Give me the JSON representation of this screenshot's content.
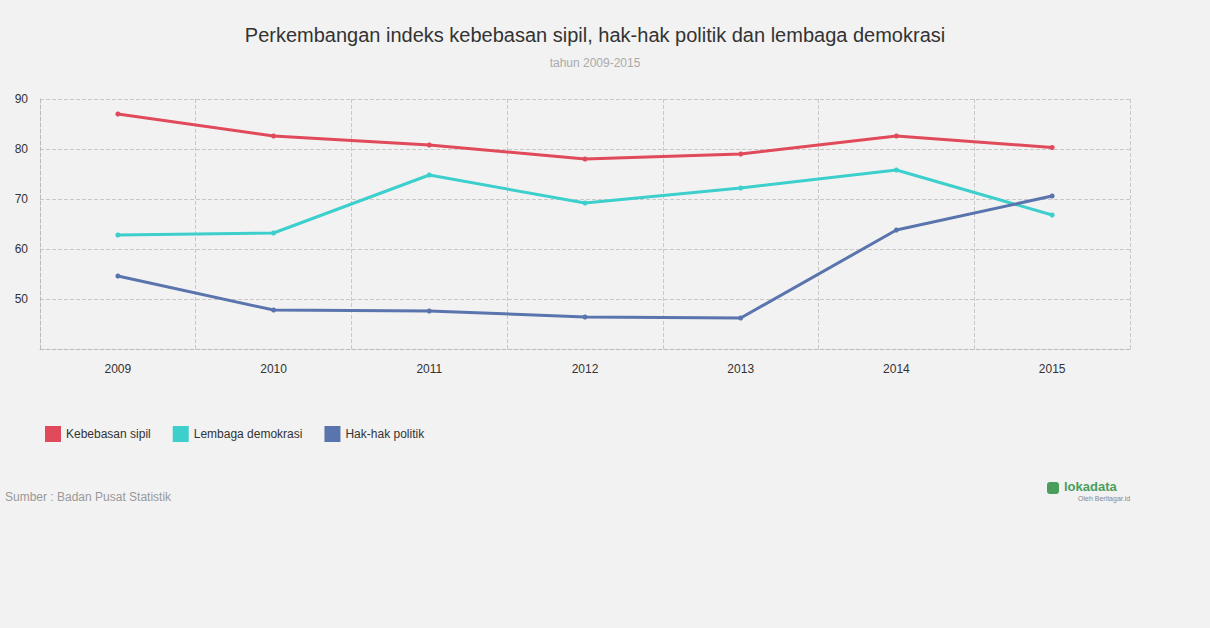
{
  "chart_data": {
    "type": "line",
    "title": "Perkembangan indeks kebebasan sipil, hak-hak politik dan lembaga demokrasi",
    "subtitle": "tahun 2009-2015",
    "source": "Sumber : Badan Pusat Statistik",
    "logo": "lokadata",
    "logo_subtext": "Oleh Beritagar.id",
    "categories": [
      "2009",
      "2010",
      "2011",
      "2012",
      "2013",
      "2014",
      "2015"
    ],
    "series": [
      {
        "name": "Kebebasan sipil",
        "color": "#e04a5a",
        "values": [
          87.0,
          82.6,
          80.8,
          78.0,
          79.0,
          82.6,
          80.3
        ]
      },
      {
        "name": "Lembaga demokrasi",
        "color": "#3ccfcc",
        "values": [
          62.8,
          63.2,
          74.8,
          69.2,
          72.2,
          75.8,
          66.8
        ]
      },
      {
        "name": "Hak-hak politik",
        "color": "#5a74ae",
        "values": [
          54.6,
          47.8,
          47.6,
          46.4,
          46.2,
          63.8,
          70.6
        ]
      }
    ],
    "ylim": [
      40,
      90
    ],
    "yticks": [
      50,
      60,
      70,
      80,
      90
    ],
    "grid": true,
    "legend": "bottom-left",
    "marker": "circle"
  }
}
